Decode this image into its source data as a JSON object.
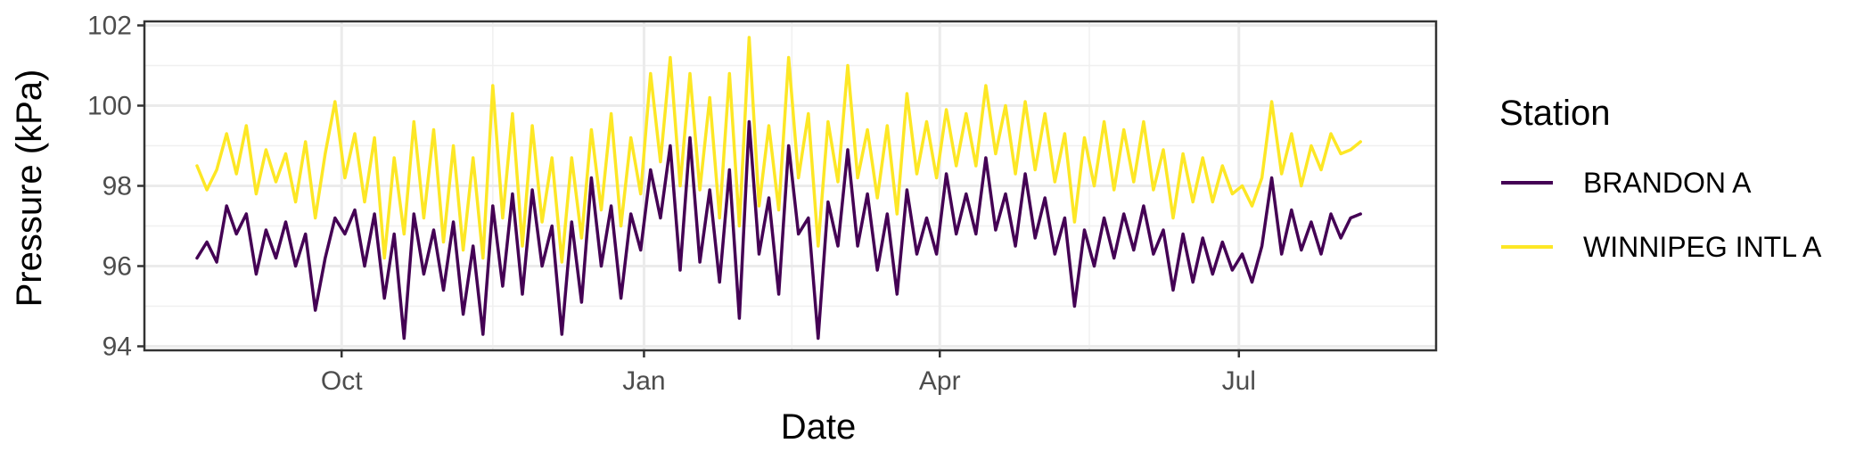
{
  "chart_data": {
    "type": "line",
    "xlabel": "Date",
    "ylabel": "Pressure (kPa)",
    "x_ticks": [
      {
        "label": "Oct",
        "date": "2013-10-01"
      },
      {
        "label": "Jan",
        "date": "2014-01-01"
      },
      {
        "label": "Apr",
        "date": "2014-04-01"
      },
      {
        "label": "Jul",
        "date": "2014-07-01"
      }
    ],
    "xlim": [
      "2013-08-02",
      "2014-08-30"
    ],
    "y_ticks": [
      94,
      96,
      98,
      100,
      102
    ],
    "ylim": [
      93.9,
      102.1
    ],
    "grid": true,
    "legend": {
      "title": "Station",
      "position": "right"
    },
    "series": [
      {
        "name": "BRANDON A",
        "color": "#440154",
        "points": [
          [
            "2013-08-18",
            96.2
          ],
          [
            "2013-08-21",
            96.6
          ],
          [
            "2013-08-24",
            96.1
          ],
          [
            "2013-08-27",
            97.5
          ],
          [
            "2013-08-30",
            96.8
          ],
          [
            "2013-09-02",
            97.3
          ],
          [
            "2013-09-05",
            95.8
          ],
          [
            "2013-09-08",
            96.9
          ],
          [
            "2013-09-11",
            96.2
          ],
          [
            "2013-09-14",
            97.1
          ],
          [
            "2013-09-17",
            96.0
          ],
          [
            "2013-09-20",
            96.8
          ],
          [
            "2013-09-23",
            94.9
          ],
          [
            "2013-09-26",
            96.2
          ],
          [
            "2013-09-29",
            97.2
          ],
          [
            "2013-10-02",
            96.8
          ],
          [
            "2013-10-05",
            97.4
          ],
          [
            "2013-10-08",
            96.0
          ],
          [
            "2013-10-11",
            97.3
          ],
          [
            "2013-10-14",
            95.2
          ],
          [
            "2013-10-17",
            96.8
          ],
          [
            "2013-10-20",
            94.2
          ],
          [
            "2013-10-23",
            97.3
          ],
          [
            "2013-10-26",
            95.8
          ],
          [
            "2013-10-29",
            96.9
          ],
          [
            "2013-11-01",
            95.4
          ],
          [
            "2013-11-04",
            97.1
          ],
          [
            "2013-11-07",
            94.8
          ],
          [
            "2013-11-10",
            96.5
          ],
          [
            "2013-11-13",
            94.3
          ],
          [
            "2013-11-16",
            97.5
          ],
          [
            "2013-11-19",
            95.5
          ],
          [
            "2013-11-22",
            97.8
          ],
          [
            "2013-11-25",
            95.3
          ],
          [
            "2013-11-28",
            97.9
          ],
          [
            "2013-12-01",
            96.0
          ],
          [
            "2013-12-04",
            97.0
          ],
          [
            "2013-12-07",
            94.3
          ],
          [
            "2013-12-10",
            97.1
          ],
          [
            "2013-12-13",
            95.1
          ],
          [
            "2013-12-16",
            98.2
          ],
          [
            "2013-12-19",
            96.0
          ],
          [
            "2013-12-22",
            97.5
          ],
          [
            "2013-12-25",
            95.2
          ],
          [
            "2013-12-28",
            97.3
          ],
          [
            "2013-12-31",
            96.4
          ],
          [
            "2014-01-03",
            98.4
          ],
          [
            "2014-01-06",
            97.2
          ],
          [
            "2014-01-09",
            99.0
          ],
          [
            "2014-01-12",
            95.9
          ],
          [
            "2014-01-15",
            99.2
          ],
          [
            "2014-01-18",
            96.1
          ],
          [
            "2014-01-21",
            97.9
          ],
          [
            "2014-01-24",
            95.6
          ],
          [
            "2014-01-27",
            98.4
          ],
          [
            "2014-01-30",
            94.7
          ],
          [
            "2014-02-02",
            99.6
          ],
          [
            "2014-02-05",
            96.3
          ],
          [
            "2014-02-08",
            97.7
          ],
          [
            "2014-02-11",
            95.3
          ],
          [
            "2014-02-14",
            99.0
          ],
          [
            "2014-02-17",
            96.8
          ],
          [
            "2014-02-20",
            97.2
          ],
          [
            "2014-02-23",
            94.2
          ],
          [
            "2014-02-26",
            97.6
          ],
          [
            "2014-03-01",
            96.5
          ],
          [
            "2014-03-04",
            98.9
          ],
          [
            "2014-03-07",
            96.5
          ],
          [
            "2014-03-10",
            97.8
          ],
          [
            "2014-03-13",
            95.9
          ],
          [
            "2014-03-16",
            97.3
          ],
          [
            "2014-03-19",
            95.3
          ],
          [
            "2014-03-22",
            97.9
          ],
          [
            "2014-03-25",
            96.3
          ],
          [
            "2014-03-28",
            97.2
          ],
          [
            "2014-03-31",
            96.3
          ],
          [
            "2014-04-03",
            98.3
          ],
          [
            "2014-04-06",
            96.8
          ],
          [
            "2014-04-09",
            97.8
          ],
          [
            "2014-04-12",
            96.8
          ],
          [
            "2014-04-15",
            98.7
          ],
          [
            "2014-04-18",
            96.9
          ],
          [
            "2014-04-21",
            97.8
          ],
          [
            "2014-04-24",
            96.5
          ],
          [
            "2014-04-27",
            98.3
          ],
          [
            "2014-04-30",
            96.7
          ],
          [
            "2014-05-03",
            97.7
          ],
          [
            "2014-05-06",
            96.3
          ],
          [
            "2014-05-09",
            97.2
          ],
          [
            "2014-05-12",
            95.0
          ],
          [
            "2014-05-15",
            96.9
          ],
          [
            "2014-05-18",
            96.0
          ],
          [
            "2014-05-21",
            97.2
          ],
          [
            "2014-05-24",
            96.2
          ],
          [
            "2014-05-27",
            97.3
          ],
          [
            "2014-05-30",
            96.4
          ],
          [
            "2014-06-02",
            97.5
          ],
          [
            "2014-06-05",
            96.3
          ],
          [
            "2014-06-08",
            96.9
          ],
          [
            "2014-06-11",
            95.4
          ],
          [
            "2014-06-14",
            96.8
          ],
          [
            "2014-06-17",
            95.6
          ],
          [
            "2014-06-20",
            96.7
          ],
          [
            "2014-06-23",
            95.8
          ],
          [
            "2014-06-26",
            96.6
          ],
          [
            "2014-06-29",
            95.9
          ],
          [
            "2014-07-02",
            96.3
          ],
          [
            "2014-07-05",
            95.6
          ],
          [
            "2014-07-08",
            96.5
          ],
          [
            "2014-07-11",
            98.2
          ],
          [
            "2014-07-14",
            96.3
          ],
          [
            "2014-07-17",
            97.4
          ],
          [
            "2014-07-20",
            96.4
          ],
          [
            "2014-07-23",
            97.1
          ],
          [
            "2014-07-26",
            96.3
          ],
          [
            "2014-07-29",
            97.3
          ],
          [
            "2014-08-01",
            96.7
          ],
          [
            "2014-08-04",
            97.2
          ],
          [
            "2014-08-07",
            97.3
          ]
        ]
      },
      {
        "name": "WINNIPEG INTL A",
        "color": "#FDE725",
        "points": [
          [
            "2013-08-18",
            98.5
          ],
          [
            "2013-08-21",
            97.9
          ],
          [
            "2013-08-24",
            98.4
          ],
          [
            "2013-08-27",
            99.3
          ],
          [
            "2013-08-30",
            98.3
          ],
          [
            "2013-09-02",
            99.5
          ],
          [
            "2013-09-05",
            97.8
          ],
          [
            "2013-09-08",
            98.9
          ],
          [
            "2013-09-11",
            98.1
          ],
          [
            "2013-09-14",
            98.8
          ],
          [
            "2013-09-17",
            97.6
          ],
          [
            "2013-09-20",
            99.1
          ],
          [
            "2013-09-23",
            97.2
          ],
          [
            "2013-09-26",
            98.8
          ],
          [
            "2013-09-29",
            100.1
          ],
          [
            "2013-10-02",
            98.2
          ],
          [
            "2013-10-05",
            99.3
          ],
          [
            "2013-10-08",
            97.6
          ],
          [
            "2013-10-11",
            99.2
          ],
          [
            "2013-10-14",
            96.2
          ],
          [
            "2013-10-17",
            98.7
          ],
          [
            "2013-10-20",
            96.8
          ],
          [
            "2013-10-23",
            99.6
          ],
          [
            "2013-10-26",
            97.2
          ],
          [
            "2013-10-29",
            99.4
          ],
          [
            "2013-11-01",
            96.6
          ],
          [
            "2013-11-04",
            99.0
          ],
          [
            "2013-11-07",
            96.4
          ],
          [
            "2013-11-10",
            98.7
          ],
          [
            "2013-11-13",
            96.2
          ],
          [
            "2013-11-16",
            100.5
          ],
          [
            "2013-11-19",
            97.2
          ],
          [
            "2013-11-22",
            99.8
          ],
          [
            "2013-11-25",
            96.5
          ],
          [
            "2013-11-28",
            99.5
          ],
          [
            "2013-12-01",
            97.1
          ],
          [
            "2013-12-04",
            98.7
          ],
          [
            "2013-12-07",
            96.1
          ],
          [
            "2013-12-10",
            98.7
          ],
          [
            "2013-12-13",
            96.7
          ],
          [
            "2013-12-16",
            99.4
          ],
          [
            "2013-12-19",
            97.4
          ],
          [
            "2013-12-22",
            99.8
          ],
          [
            "2013-12-25",
            97.0
          ],
          [
            "2013-12-28",
            99.2
          ],
          [
            "2013-12-31",
            97.8
          ],
          [
            "2014-01-03",
            100.8
          ],
          [
            "2014-01-06",
            98.6
          ],
          [
            "2014-01-09",
            101.2
          ],
          [
            "2014-01-12",
            98.0
          ],
          [
            "2014-01-15",
            100.8
          ],
          [
            "2014-01-18",
            97.9
          ],
          [
            "2014-01-21",
            100.2
          ],
          [
            "2014-01-24",
            97.2
          ],
          [
            "2014-01-27",
            100.8
          ],
          [
            "2014-01-30",
            97.0
          ],
          [
            "2014-02-02",
            101.7
          ],
          [
            "2014-02-05",
            97.5
          ],
          [
            "2014-02-08",
            99.5
          ],
          [
            "2014-02-11",
            97.4
          ],
          [
            "2014-02-14",
            101.2
          ],
          [
            "2014-02-17",
            98.2
          ],
          [
            "2014-02-20",
            99.8
          ],
          [
            "2014-02-23",
            96.5
          ],
          [
            "2014-02-26",
            99.6
          ],
          [
            "2014-03-01",
            98.1
          ],
          [
            "2014-03-04",
            101.0
          ],
          [
            "2014-03-07",
            98.2
          ],
          [
            "2014-03-10",
            99.4
          ],
          [
            "2014-03-13",
            97.7
          ],
          [
            "2014-03-16",
            99.5
          ],
          [
            "2014-03-19",
            97.3
          ],
          [
            "2014-03-22",
            100.3
          ],
          [
            "2014-03-25",
            98.3
          ],
          [
            "2014-03-28",
            99.6
          ],
          [
            "2014-03-31",
            98.2
          ],
          [
            "2014-04-03",
            99.9
          ],
          [
            "2014-04-06",
            98.5
          ],
          [
            "2014-04-09",
            99.8
          ],
          [
            "2014-04-12",
            98.5
          ],
          [
            "2014-04-15",
            100.5
          ],
          [
            "2014-04-18",
            98.8
          ],
          [
            "2014-04-21",
            100.0
          ],
          [
            "2014-04-24",
            98.3
          ],
          [
            "2014-04-27",
            100.1
          ],
          [
            "2014-04-30",
            98.4
          ],
          [
            "2014-05-03",
            99.8
          ],
          [
            "2014-05-06",
            98.1
          ],
          [
            "2014-05-09",
            99.3
          ],
          [
            "2014-05-12",
            97.1
          ],
          [
            "2014-05-15",
            99.2
          ],
          [
            "2014-05-18",
            98.0
          ],
          [
            "2014-05-21",
            99.6
          ],
          [
            "2014-05-24",
            97.9
          ],
          [
            "2014-05-27",
            99.4
          ],
          [
            "2014-05-30",
            98.1
          ],
          [
            "2014-06-02",
            99.6
          ],
          [
            "2014-06-05",
            97.9
          ],
          [
            "2014-06-08",
            98.9
          ],
          [
            "2014-06-11",
            97.2
          ],
          [
            "2014-06-14",
            98.8
          ],
          [
            "2014-06-17",
            97.6
          ],
          [
            "2014-06-20",
            98.7
          ],
          [
            "2014-06-23",
            97.6
          ],
          [
            "2014-06-26",
            98.5
          ],
          [
            "2014-06-29",
            97.8
          ],
          [
            "2014-07-02",
            98.0
          ],
          [
            "2014-07-05",
            97.5
          ],
          [
            "2014-07-08",
            98.2
          ],
          [
            "2014-07-11",
            100.1
          ],
          [
            "2014-07-14",
            98.3
          ],
          [
            "2014-07-17",
            99.3
          ],
          [
            "2014-07-20",
            98.0
          ],
          [
            "2014-07-23",
            99.0
          ],
          [
            "2014-07-26",
            98.4
          ],
          [
            "2014-07-29",
            99.3
          ],
          [
            "2014-08-01",
            98.8
          ],
          [
            "2014-08-04",
            98.9
          ],
          [
            "2014-08-07",
            99.1
          ]
        ]
      }
    ]
  }
}
